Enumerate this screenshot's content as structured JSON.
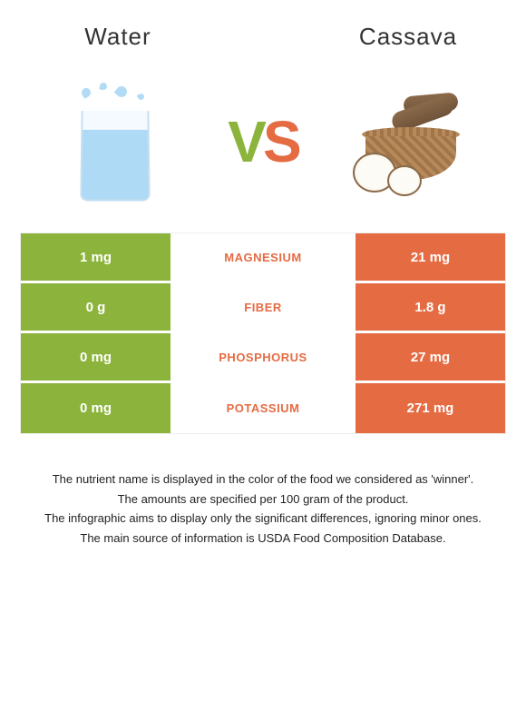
{
  "header": {
    "left_title": "Water",
    "right_title": "Cassava"
  },
  "vs": {
    "v": "V",
    "s": "S"
  },
  "colors": {
    "left": "#8cb43c",
    "right": "#e56b43",
    "nutrient_winner": "#e56b43"
  },
  "table": {
    "rows": [
      {
        "left": "1 mg",
        "label": "Magnesium",
        "right": "21 mg",
        "winner": "right"
      },
      {
        "left": "0 g",
        "label": "Fiber",
        "right": "1.8 g",
        "winner": "right"
      },
      {
        "left": "0 mg",
        "label": "Phosphorus",
        "right": "27 mg",
        "winner": "right"
      },
      {
        "left": "0 mg",
        "label": "Potassium",
        "right": "271 mg",
        "winner": "right"
      }
    ]
  },
  "footnotes": [
    "The nutrient name is displayed in the color of the food we considered as 'winner'.",
    "The amounts are specified per 100 gram of the product.",
    "The infographic aims to display only the significant differences, ignoring minor ones.",
    "The main source of information is USDA Food Composition Database."
  ]
}
